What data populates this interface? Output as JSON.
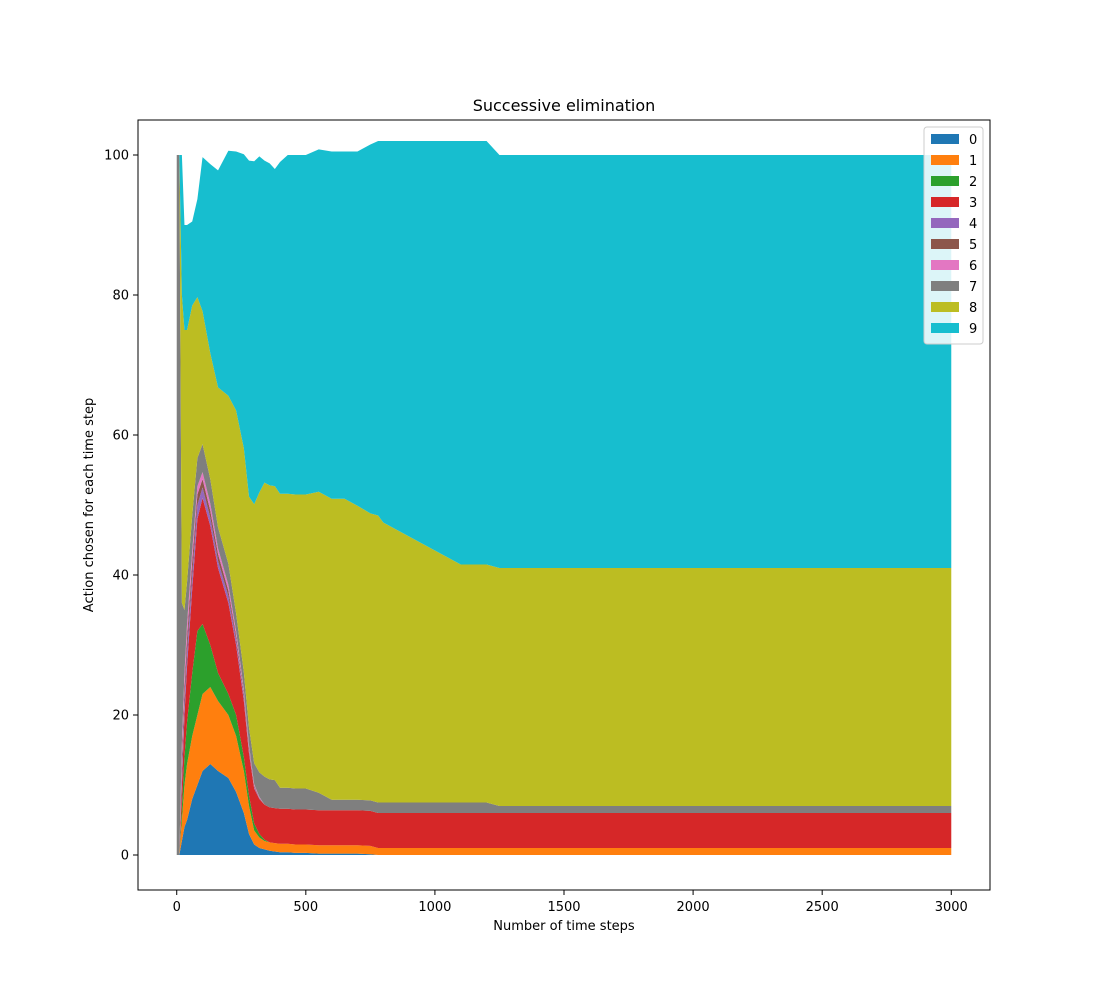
{
  "chart_data": {
    "type": "area",
    "title": "Successive elimination",
    "xlabel": "Number of time steps",
    "ylabel": "Action chosen for each time step",
    "xlim": [
      -150,
      3150
    ],
    "ylim": [
      -5,
      105
    ],
    "xticks": [
      0,
      500,
      1000,
      1500,
      2000,
      2500,
      3000
    ],
    "yticks": [
      0,
      20,
      40,
      60,
      80,
      100
    ],
    "legend_position": "upper right",
    "grid": false,
    "x": [
      0,
      10,
      20,
      30,
      40,
      60,
      80,
      100,
      130,
      160,
      200,
      230,
      260,
      280,
      300,
      320,
      340,
      360,
      380,
      400,
      430,
      460,
      500,
      550,
      600,
      650,
      700,
      750,
      780,
      800,
      850,
      900,
      950,
      1000,
      1050,
      1100,
      1150,
      1200,
      1250,
      1500,
      2000,
      2500,
      3000
    ],
    "series": [
      {
        "name": "0",
        "color": "#1f77b4",
        "values": [
          0,
          0,
          2,
          4,
          5,
          8,
          10,
          12,
          13,
          12,
          11,
          9,
          6,
          3,
          1.5,
          1,
          0.8,
          0.6,
          0.5,
          0.4,
          0.4,
          0.3,
          0.3,
          0.2,
          0.2,
          0.2,
          0.2,
          0.1,
          0,
          0,
          0,
          0,
          0,
          0,
          0,
          0,
          0,
          0,
          0,
          0,
          0,
          0,
          0
        ]
      },
      {
        "name": "1",
        "color": "#ff7f0e",
        "values": [
          0,
          0,
          3,
          6,
          8,
          9,
          10,
          11,
          11,
          10,
          9,
          8,
          6,
          4,
          2,
          1.5,
          1.2,
          1.2,
          1.2,
          1.2,
          1.2,
          1.2,
          1.2,
          1.2,
          1.2,
          1.2,
          1.2,
          1.2,
          1,
          1,
          1,
          1,
          1,
          1,
          1,
          1,
          1,
          1,
          1,
          1,
          1,
          1,
          1
        ]
      },
      {
        "name": "2",
        "color": "#2ca02c",
        "values": [
          0,
          0,
          2,
          4,
          6,
          9,
          12,
          10,
          6,
          4,
          3,
          3,
          2,
          1.5,
          1,
          0.5,
          0.2,
          0,
          0,
          0,
          0,
          0,
          0,
          0,
          0,
          0,
          0,
          0,
          0,
          0,
          0,
          0,
          0,
          0,
          0,
          0,
          0,
          0,
          0,
          0,
          0,
          0,
          0
        ]
      },
      {
        "name": "3",
        "color": "#d62728",
        "values": [
          0,
          0,
          3,
          6,
          8,
          12,
          16,
          18,
          17,
          15,
          13,
          10,
          8,
          6,
          5,
          5,
          5,
          5,
          5,
          5,
          5,
          5,
          5,
          5,
          5,
          5,
          5,
          5,
          5,
          5,
          5,
          5,
          5,
          5,
          5,
          5,
          5,
          5,
          5,
          5,
          5,
          5,
          5
        ]
      },
      {
        "name": "4",
        "color": "#9467bd",
        "values": [
          0,
          0,
          2,
          2,
          2,
          2,
          2,
          1.5,
          1.2,
          1,
          1,
          0.8,
          0.6,
          0.4,
          0.2,
          0.1,
          0,
          0,
          0,
          0,
          0,
          0,
          0,
          0,
          0,
          0,
          0,
          0,
          0,
          0,
          0,
          0,
          0,
          0,
          0,
          0,
          0,
          0,
          0,
          0,
          0,
          0,
          0
        ]
      },
      {
        "name": "5",
        "color": "#8c564b",
        "values": [
          0,
          0,
          2,
          2,
          2,
          2,
          1.5,
          1.2,
          1,
          1,
          0.8,
          0.6,
          0.5,
          0.4,
          0.2,
          0.1,
          0,
          0,
          0,
          0,
          0,
          0,
          0,
          0,
          0,
          0,
          0,
          0,
          0,
          0,
          0,
          0,
          0,
          0,
          0,
          0,
          0,
          0,
          0,
          0,
          0,
          0,
          0
        ]
      },
      {
        "name": "6",
        "color": "#e377c2",
        "values": [
          0,
          0,
          2,
          2,
          2,
          1.5,
          1.2,
          1,
          1,
          0.8,
          0.8,
          0.6,
          0.5,
          0.4,
          0.2,
          0.1,
          0,
          0,
          0,
          0,
          0,
          0,
          0,
          0,
          0,
          0,
          0,
          0,
          0,
          0,
          0,
          0,
          0,
          0,
          0,
          0,
          0,
          0,
          0,
          0,
          0,
          0,
          0
        ]
      },
      {
        "name": "7",
        "color": "#7f7f7f",
        "values": [
          100,
          100,
          20,
          9,
          6,
          5,
          4,
          4,
          3.5,
          3,
          3,
          2.5,
          2.5,
          2.5,
          3,
          3.5,
          4,
          4,
          4,
          3,
          3,
          3,
          3,
          2.5,
          1.5,
          1.5,
          1.5,
          1.5,
          1.5,
          1.5,
          1.5,
          1.5,
          1.5,
          1.5,
          1.5,
          1.5,
          1.5,
          1.5,
          1,
          1,
          1,
          1,
          1
        ]
      },
      {
        "name": "8",
        "color": "#bcbd22",
        "values": [
          0,
          0,
          44,
          40,
          36,
          30,
          23,
          19,
          18,
          20,
          24,
          29,
          32,
          33,
          37,
          40,
          42,
          42,
          42,
          42,
          42,
          42,
          42,
          43,
          43,
          43,
          42,
          41,
          41,
          40,
          39,
          38,
          37,
          36,
          35,
          34,
          34,
          34,
          34,
          34,
          34,
          34,
          34
        ]
      },
      {
        "name": "9",
        "color": "#17becf",
        "values": [
          0,
          0,
          20,
          15,
          15,
          12,
          14,
          22,
          27,
          31,
          35,
          37,
          42,
          48,
          49,
          48,
          46,
          46,
          45.3,
          47.4,
          48.4,
          48.5,
          48.5,
          48.9,
          49.6,
          49.6,
          50.6,
          52.7,
          53.5,
          54.5,
          55.5,
          56.5,
          57.5,
          58.5,
          59.5,
          60.5,
          60.5,
          60.5,
          59,
          59,
          59,
          59,
          59
        ]
      }
    ]
  }
}
